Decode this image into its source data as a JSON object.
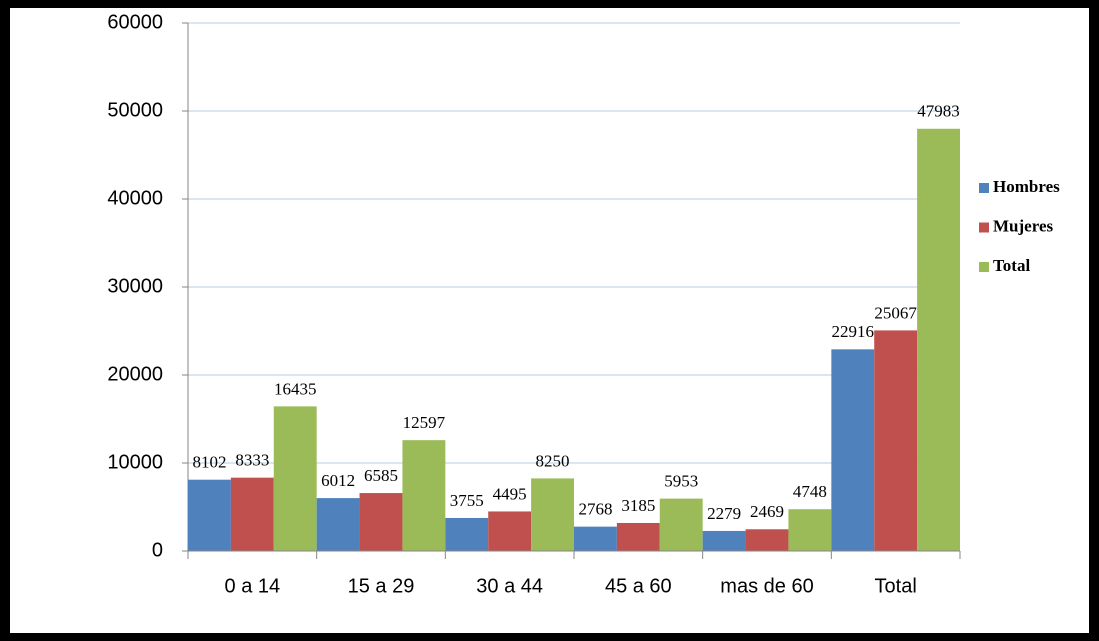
{
  "chart_data": {
    "type": "bar",
    "categories": [
      "0 a 14",
      "15 a 29",
      "30 a 44",
      "45 a 60",
      "mas de 60",
      "Total"
    ],
    "series": [
      {
        "name": "Hombres",
        "color": "#4f81bd",
        "values": [
          8102,
          6012,
          3755,
          2768,
          2279,
          22916
        ]
      },
      {
        "name": "Mujeres",
        "color": "#c0504d",
        "values": [
          8333,
          6585,
          4495,
          3185,
          2469,
          25067
        ]
      },
      {
        "name": "Total",
        "color": "#9bbb59",
        "values": [
          16435,
          12597,
          8250,
          5953,
          4748,
          47983
        ]
      }
    ],
    "ylim": [
      0,
      60000
    ],
    "yticks": [
      0,
      10000,
      20000,
      30000,
      40000,
      50000,
      60000
    ],
    "grid": true,
    "legend": "right"
  }
}
